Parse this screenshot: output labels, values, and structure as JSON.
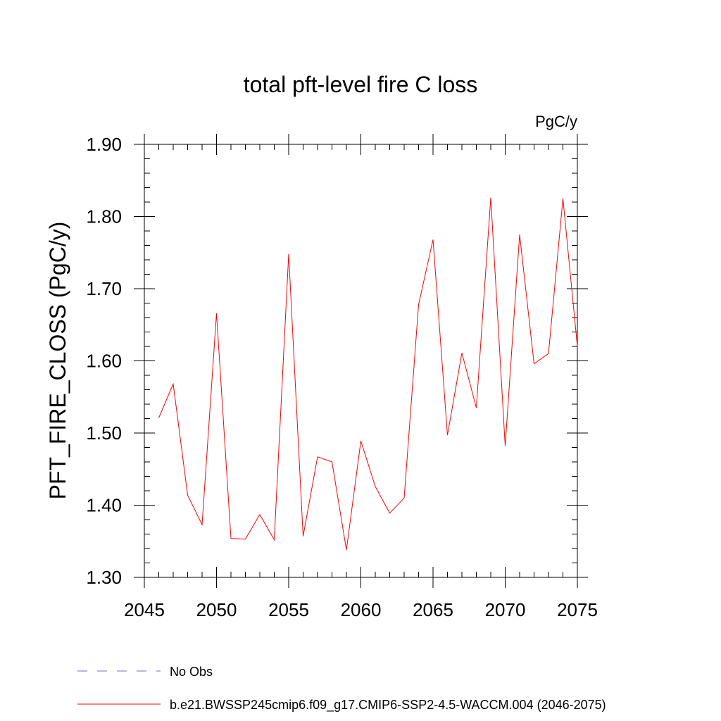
{
  "chart_data": {
    "type": "line",
    "title": "total pft-level fire C loss",
    "units_label": "PgC/y",
    "ylabel": "PFT_FIRE_CLOSS  (PgC/y)",
    "xlabel": "",
    "xlim": [
      2045,
      2075
    ],
    "ylim": [
      1.3,
      1.9
    ],
    "x_ticks": [
      "2045",
      "2050",
      "2055",
      "2060",
      "2065",
      "2070",
      "2075"
    ],
    "y_ticks": [
      "1.30",
      "1.40",
      "1.50",
      "1.60",
      "1.70",
      "1.80",
      "1.90"
    ],
    "series": [
      {
        "name": "b.e21.BWSSP245cmip6.f09_g17.CMIP6-SSP2-4.5-WACCM.004 (2046-2075)",
        "color": "#ff0000",
        "x": [
          2046,
          2047,
          2048,
          2049,
          2050,
          2051,
          2052,
          2053,
          2054,
          2055,
          2056,
          2057,
          2058,
          2059,
          2060,
          2061,
          2062,
          2063,
          2064,
          2065,
          2066,
          2067,
          2068,
          2069,
          2070,
          2071,
          2072,
          2073,
          2074,
          2075
        ],
        "y": [
          1.521,
          1.568,
          1.414,
          1.373,
          1.666,
          1.354,
          1.353,
          1.387,
          1.352,
          1.748,
          1.357,
          1.467,
          1.46,
          1.338,
          1.489,
          1.426,
          1.389,
          1.41,
          1.678,
          1.768,
          1.497,
          1.611,
          1.535,
          1.826,
          1.482,
          1.775,
          1.596,
          1.61,
          1.825,
          1.62
        ]
      }
    ],
    "legend": [
      {
        "label": "No Obs",
        "color": "#7b68c8",
        "style": "dashed"
      },
      {
        "label": "b.e21.BWSSP245cmip6.f09_g17.CMIP6-SSP2-4.5-WACCM.004 (2046-2075)",
        "color": "#ff0000",
        "style": "solid"
      }
    ],
    "legend_placement": "bottom",
    "grid": false
  }
}
